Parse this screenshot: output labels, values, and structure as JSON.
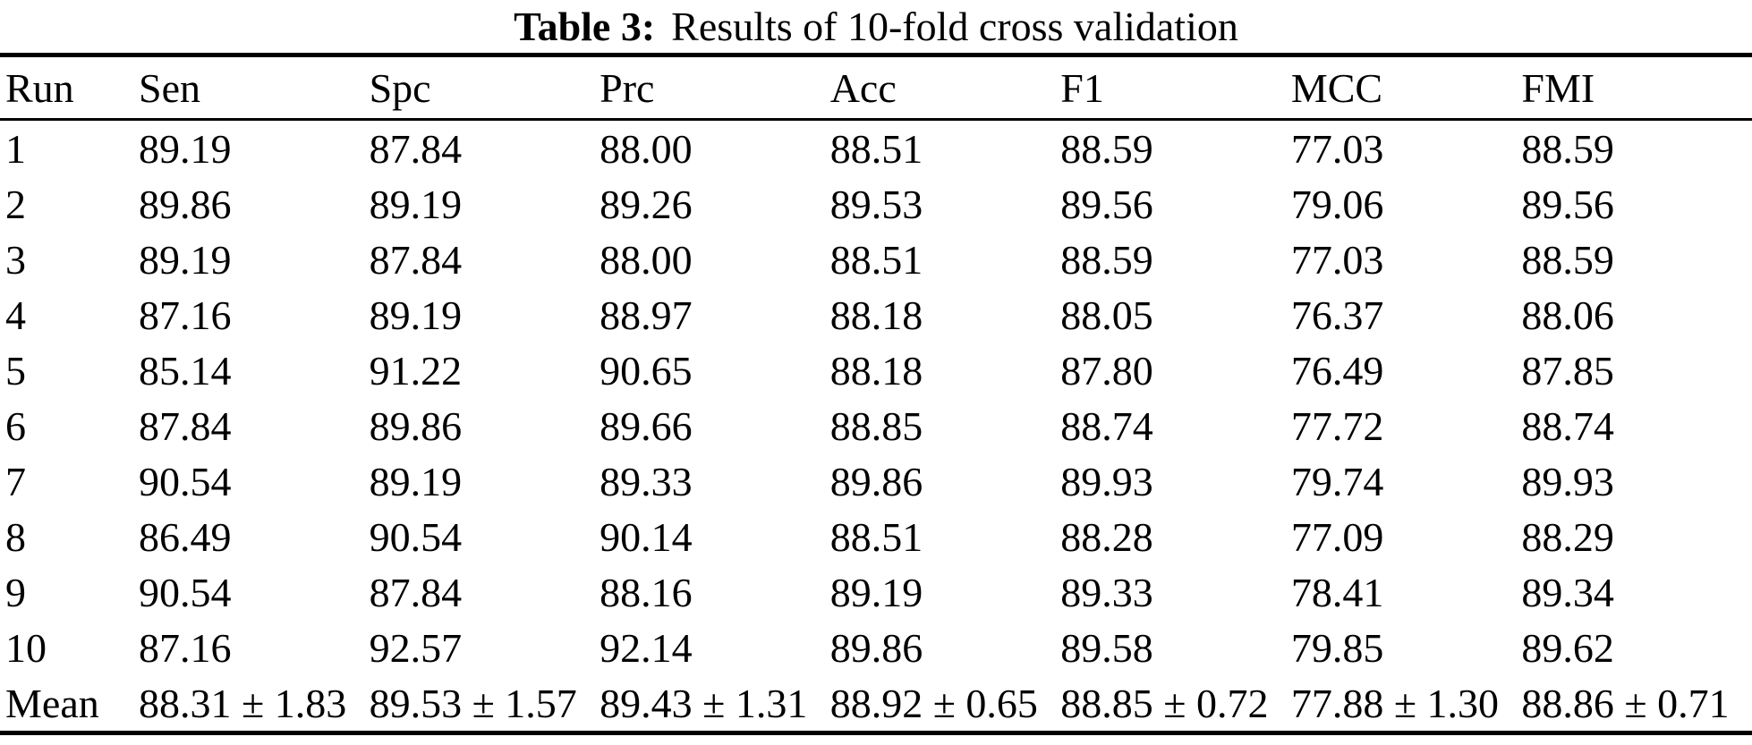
{
  "caption": {
    "label": "Table 3:",
    "text": "Results of 10-fold cross validation"
  },
  "table": {
    "columns": [
      "Run",
      "Sen",
      "Spc",
      "Prc",
      "Acc",
      "F1",
      "MCC",
      "FMI"
    ],
    "rows": [
      [
        "1",
        "89.19",
        "87.84",
        "88.00",
        "88.51",
        "88.59",
        "77.03",
        "88.59"
      ],
      [
        "2",
        "89.86",
        "89.19",
        "89.26",
        "89.53",
        "89.56",
        "79.06",
        "89.56"
      ],
      [
        "3",
        "89.19",
        "87.84",
        "88.00",
        "88.51",
        "88.59",
        "77.03",
        "88.59"
      ],
      [
        "4",
        "87.16",
        "89.19",
        "88.97",
        "88.18",
        "88.05",
        "76.37",
        "88.06"
      ],
      [
        "5",
        "85.14",
        "91.22",
        "90.65",
        "88.18",
        "87.80",
        "76.49",
        "87.85"
      ],
      [
        "6",
        "87.84",
        "89.86",
        "89.66",
        "88.85",
        "88.74",
        "77.72",
        "88.74"
      ],
      [
        "7",
        "90.54",
        "89.19",
        "89.33",
        "89.86",
        "89.93",
        "79.74",
        "89.93"
      ],
      [
        "8",
        "86.49",
        "90.54",
        "90.14",
        "88.51",
        "88.28",
        "77.09",
        "88.29"
      ],
      [
        "9",
        "90.54",
        "87.84",
        "88.16",
        "89.19",
        "89.33",
        "78.41",
        "89.34"
      ],
      [
        "10",
        "87.16",
        "92.57",
        "92.14",
        "89.86",
        "89.58",
        "79.85",
        "89.62"
      ]
    ],
    "mean_row": [
      "Mean",
      "88.31 ± 1.83",
      "89.53 ± 1.57",
      "89.43 ± 1.31",
      "88.92 ± 0.65",
      "88.85 ± 0.72",
      "77.88 ± 1.30",
      "88.86 ± 0.71"
    ]
  },
  "colors": {
    "text": "#000000",
    "background": "#ffffff",
    "rule": "#000000"
  }
}
